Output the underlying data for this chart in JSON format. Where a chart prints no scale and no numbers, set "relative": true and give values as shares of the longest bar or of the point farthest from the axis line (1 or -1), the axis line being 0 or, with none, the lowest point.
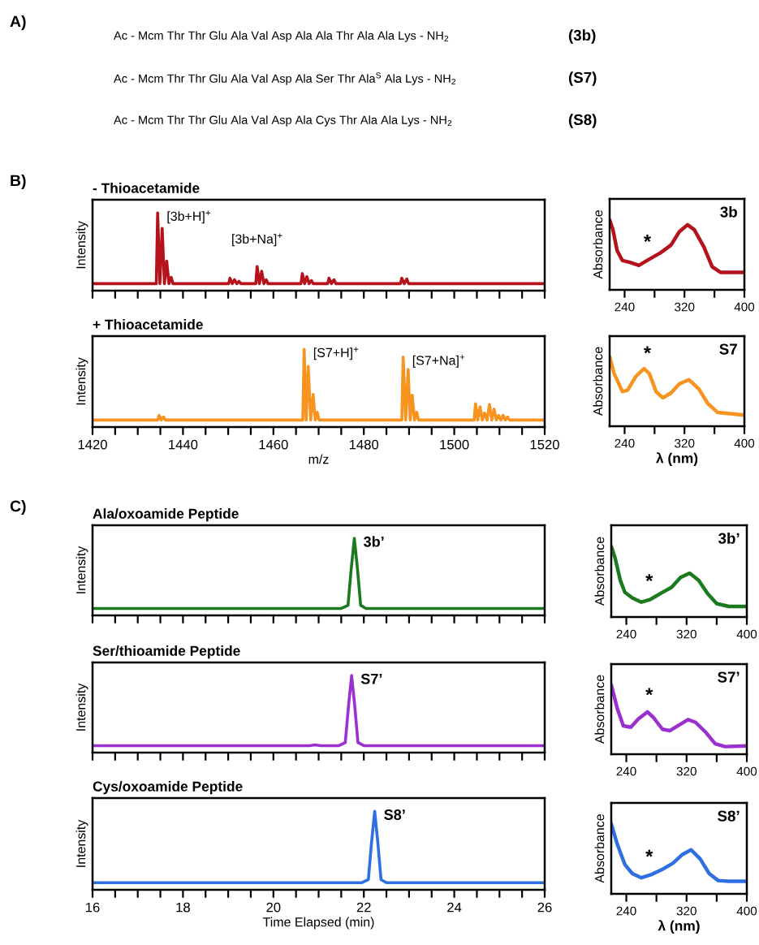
{
  "chart_data": [
    {
      "type": "other",
      "annotations": [
        "A)",
        "Ac - Mcm Thr Thr Glu Ala Val Asp Ala Ala Thr Ala Ala Lys - NH$_{2}$",
        "(3b)",
        "Ac - Mcm Thr Thr Glu Ala Val Asp Ala Ser Thr Ala$^{S}$ Ala Lys - NH$_{2}$",
        "(S7)",
        "Ac - Mcm Thr Thr Glu Ala Val Asp Ala Cys Thr Ala Ala Lys - NH$_{2}$",
        "(S8)"
      ]
    },
    {
      "type": "line",
      "title": "- Thioacetamide",
      "ylabel": "Intensity",
      "relative": true,
      "tick_labels": false,
      "xlim": [
        1420,
        1520
      ],
      "xticks": [
        1420,
        {
          "value": 1425,
          "label": null
        },
        {
          "value": 1430,
          "label": null
        },
        {
          "value": 1435,
          "label": null
        },
        {
          "value": 1440,
          "label": null
        },
        {
          "value": 1445,
          "label": null
        },
        {
          "value": 1450,
          "label": null
        },
        {
          "value": 1455,
          "label": null
        },
        {
          "value": 1460,
          "label": null
        },
        {
          "value": 1465,
          "label": null
        },
        {
          "value": 1470,
          "label": null
        },
        {
          "value": 1475,
          "label": null
        },
        {
          "value": 1480,
          "label": null
        },
        {
          "value": 1485,
          "label": null
        },
        {
          "value": 1490,
          "label": null
        },
        {
          "value": 1495,
          "label": null
        },
        {
          "value": 1500,
          "label": null
        },
        {
          "value": 1505,
          "label": null
        },
        {
          "value": 1510,
          "label": null
        },
        {
          "value": 1515,
          "label": null
        },
        {
          "value": 1520,
          "label": null
        }
      ],
      "annotations": [
        "B)",
        {
          "text": "[3b+H]$^{+}$",
          "x": 1434.4,
          "y": 1
        },
        {
          "text": "[3b+Na]$^{+}$",
          "x": 1456.4,
          "y": 0.31
        }
      ],
      "series": [
        {
          "color": "#b5121b",
          "x": [
            1420,
            1434.1,
            1434.4,
            1434.9,
            1435.4,
            1435.9,
            1436.4,
            1436.9,
            1437.4,
            1437.8,
            1450.1,
            1450.4,
            1450.9,
            1451.4,
            1451.9,
            1452.4,
            1452.8,
            1456.1,
            1456.4,
            1456.9,
            1457.4,
            1457.9,
            1458.4,
            1458.8,
            1466.1,
            1466.4,
            1466.9,
            1467.4,
            1467.9,
            1468.4,
            1468.8,
            1472.0,
            1472.3,
            1472.85,
            1473.4,
            1473.8,
            1488.1,
            1488.4,
            1488.95,
            1489.5,
            1489.9,
            1520
          ],
          "values": [
            0.09,
            0.09,
            1,
            0.09,
            0.8,
            0.09,
            0.38,
            0.09,
            0.17,
            0.09,
            0.09,
            0.16,
            0.09,
            0.14,
            0.09,
            0.12,
            0.09,
            0.09,
            0.31,
            0.09,
            0.25,
            0.09,
            0.14,
            0.09,
            0.09,
            0.22,
            0.09,
            0.18,
            0.09,
            0.13,
            0.09,
            0.09,
            0.16,
            0.09,
            0.14,
            0.09,
            0.09,
            0.16,
            0.09,
            0.15,
            0.09,
            0.09
          ]
        }
      ]
    },
    {
      "type": "line",
      "ylabel": "Absorbance",
      "relative": true,
      "xlim": [
        220,
        400
      ],
      "xticks": [
        240,
        {
          "value": 280,
          "label": null
        },
        320,
        {
          "value": 360,
          "label": null
        },
        400
      ],
      "annotations": [
        "3b",
        "*"
      ],
      "series": [
        {
          "color": "#b5121b",
          "x": [
            220,
            224.4,
            230,
            237,
            248,
            259,
            270,
            288,
            302,
            313,
            324,
            333,
            346,
            357,
            368,
            400
          ],
          "values": [
            1,
            0.86,
            0.56,
            0.42,
            0.39,
            0.35,
            0.42,
            0.53,
            0.64,
            0.83,
            0.93,
            0.86,
            0.61,
            0.33,
            0.25,
            0.25
          ]
        }
      ]
    },
    {
      "type": "line",
      "title": "+ Thioacetamide",
      "xlabel": "m/z",
      "ylabel": "Intensity",
      "relative": true,
      "xlim": [
        1420,
        1520
      ],
      "xticks": [
        1420,
        {
          "value": 1425,
          "label": null
        },
        {
          "value": 1430,
          "label": null
        },
        {
          "value": 1435,
          "label": null
        },
        1440,
        {
          "value": 1445,
          "label": null
        },
        {
          "value": 1450,
          "label": null
        },
        {
          "value": 1455,
          "label": null
        },
        1460,
        {
          "value": 1465,
          "label": null
        },
        {
          "value": 1470,
          "label": null
        },
        {
          "value": 1475,
          "label": null
        },
        1480,
        {
          "value": 1485,
          "label": null
        },
        {
          "value": 1490,
          "label": null
        },
        {
          "value": 1495,
          "label": null
        },
        1500,
        {
          "value": 1505,
          "label": null
        },
        {
          "value": 1510,
          "label": null
        },
        {
          "value": 1515,
          "label": null
        },
        1520
      ],
      "annotations": [
        {
          "text": "[S7+H]$^{+}$",
          "x": 1466.8,
          "y": 1
        },
        {
          "text": "[S7+Na]$^{+}$",
          "x": 1488.7,
          "y": 0.9
        }
      ],
      "series": [
        {
          "color": "#f7931e",
          "x": [
            1420,
            1434.4,
            1434.7,
            1435.2,
            1435.7,
            1436.1,
            1466.5,
            1466.8,
            1467.25,
            1467.7,
            1468.25,
            1468.8,
            1469.25,
            1469.7,
            1470.1,
            1488.4,
            1488.7,
            1489.25,
            1489.8,
            1490.25,
            1490.7,
            1491.2,
            1491.7,
            1492.1,
            1504.4,
            1504.7,
            1505.2,
            1505.7,
            1506.2,
            1506.7,
            1507.25,
            1507.8,
            1508.3,
            1508.8,
            1509.3,
            1509.8,
            1510.3,
            1510.8,
            1511.3,
            1511.8,
            1512.2,
            1520
          ],
          "values": [
            0.09,
            0.09,
            0.15,
            0.09,
            0.13,
            0.09,
            0.09,
            1,
            0.09,
            0.78,
            0.09,
            0.42,
            0.09,
            0.19,
            0.09,
            0.09,
            0.9,
            0.09,
            0.74,
            0.09,
            0.41,
            0.09,
            0.19,
            0.09,
            0.09,
            0.3,
            0.09,
            0.26,
            0.09,
            0.18,
            0.09,
            0.29,
            0.09,
            0.23,
            0.09,
            0.15,
            0.09,
            0.15,
            0.09,
            0.13,
            0.09,
            0.09
          ]
        }
      ]
    },
    {
      "type": "line",
      "xlabel": "λ (nm)",
      "ylabel": "Absorbance",
      "relative": true,
      "xlim": [
        220,
        400
      ],
      "xticks": [
        240,
        {
          "value": 280,
          "label": null
        },
        320,
        {
          "value": 360,
          "label": null
        },
        400
      ],
      "annotations": [
        "S7",
        "*"
      ],
      "series": [
        {
          "color": "#f7931e",
          "x": [
            220,
            226,
            237,
            244,
            255,
            266,
            273,
            282,
            291,
            302,
            313,
            326,
            339,
            351,
            364,
            400
          ],
          "values": [
            1,
            0.76,
            0.5,
            0.52,
            0.72,
            0.83,
            0.76,
            0.5,
            0.41,
            0.48,
            0.61,
            0.67,
            0.54,
            0.33,
            0.2,
            0.16
          ]
        }
      ]
    },
    {
      "type": "line",
      "title": "Ala/oxoamide Peptide",
      "ylabel": "Intensity",
      "relative": true,
      "tick_labels": false,
      "xlim": [
        16,
        26
      ],
      "xticks": [
        16,
        {
          "value": 16.5,
          "label": null
        },
        {
          "value": 17,
          "label": null
        },
        {
          "value": 17.5,
          "label": null
        },
        {
          "value": 18,
          "label": null
        },
        {
          "value": 18.5,
          "label": null
        },
        {
          "value": 19,
          "label": null
        },
        {
          "value": 19.5,
          "label": null
        },
        {
          "value": 20,
          "label": null
        },
        {
          "value": 20.5,
          "label": null
        },
        {
          "value": 21,
          "label": null
        },
        {
          "value": 21.5,
          "label": null
        },
        {
          "value": 22,
          "label": null
        },
        {
          "value": 22.5,
          "label": null
        },
        {
          "value": 23,
          "label": null
        },
        {
          "value": 23.5,
          "label": null
        },
        {
          "value": 24,
          "label": null
        },
        {
          "value": 24.5,
          "label": null
        },
        {
          "value": 25,
          "label": null
        },
        {
          "value": 25.5,
          "label": null
        },
        {
          "value": 26,
          "label": null
        }
      ],
      "annotations": [
        "C)",
        {
          "text": "3b’",
          "x": 21.79,
          "y": 1
        }
      ],
      "series": [
        {
          "color": "#1b7a1e",
          "x": [
            16,
            21.5,
            21.65,
            21.72,
            21.79,
            21.86,
            21.93,
            22.05,
            26
          ],
          "values": [
            0.09,
            0.09,
            0.13,
            0.6,
            1,
            0.6,
            0.13,
            0.09,
            0.09
          ]
        }
      ]
    },
    {
      "type": "line",
      "ylabel": "Absorbance",
      "relative": true,
      "xlim": [
        220,
        400
      ],
      "xticks": [
        240,
        {
          "value": 280,
          "label": null
        },
        320,
        {
          "value": 360,
          "label": null
        },
        400
      ],
      "annotations": [
        "3b’",
        "*"
      ],
      "series": [
        {
          "color": "#1b7a1e",
          "x": [
            220,
            225,
            232,
            238,
            248,
            260,
            272,
            288,
            300,
            312,
            324,
            336,
            348,
            360,
            376,
            400
          ],
          "values": [
            1,
            0.84,
            0.52,
            0.35,
            0.27,
            0.21,
            0.25,
            0.35,
            0.42,
            0.56,
            0.62,
            0.52,
            0.33,
            0.19,
            0.15,
            0.15
          ]
        }
      ]
    },
    {
      "type": "line",
      "title": "Ser/thioamide Peptide",
      "ylabel": "Intensity",
      "relative": true,
      "tick_labels": false,
      "xlim": [
        16,
        26
      ],
      "xticks": [
        16,
        {
          "value": 16.5,
          "label": null
        },
        {
          "value": 17,
          "label": null
        },
        {
          "value": 17.5,
          "label": null
        },
        {
          "value": 18,
          "label": null
        },
        {
          "value": 18.5,
          "label": null
        },
        {
          "value": 19,
          "label": null
        },
        {
          "value": 19.5,
          "label": null
        },
        {
          "value": 20,
          "label": null
        },
        {
          "value": 20.5,
          "label": null
        },
        {
          "value": 21,
          "label": null
        },
        {
          "value": 21.5,
          "label": null
        },
        {
          "value": 22,
          "label": null
        },
        {
          "value": 22.5,
          "label": null
        },
        {
          "value": 23,
          "label": null
        },
        {
          "value": 23.5,
          "label": null
        },
        {
          "value": 24,
          "label": null
        },
        {
          "value": 24.5,
          "label": null
        },
        {
          "value": 25,
          "label": null
        },
        {
          "value": 25.5,
          "label": null
        },
        {
          "value": 26,
          "label": null
        }
      ],
      "annotations": [
        {
          "text": "S7’",
          "x": 21.73,
          "y": 1
        }
      ],
      "series": [
        {
          "color": "#9b30d0",
          "x": [
            16,
            20.8,
            20.92,
            21.05,
            21.45,
            21.59,
            21.66,
            21.73,
            21.8,
            21.87,
            22.0,
            26
          ],
          "values": [
            0.09,
            0.09,
            0.1,
            0.09,
            0.09,
            0.13,
            0.6,
            1,
            0.6,
            0.13,
            0.09,
            0.09
          ]
        }
      ]
    },
    {
      "type": "line",
      "ylabel": "Absorbance",
      "relative": true,
      "xlim": [
        220,
        400
      ],
      "xticks": [
        240,
        {
          "value": 280,
          "label": null
        },
        320,
        {
          "value": 360,
          "label": null
        },
        400
      ],
      "annotations": [
        "S7’",
        "*"
      ],
      "series": [
        {
          "color": "#9b30d0",
          "x": [
            220,
            228,
            236,
            246,
            256,
            268,
            276,
            288,
            298,
            310,
            322,
            332,
            346,
            358,
            371,
            400
          ],
          "values": [
            1,
            0.66,
            0.41,
            0.39,
            0.51,
            0.61,
            0.53,
            0.36,
            0.34,
            0.42,
            0.5,
            0.46,
            0.31,
            0.15,
            0.11,
            0.12
          ]
        }
      ]
    },
    {
      "type": "line",
      "title": "Cys/oxoamide Peptide",
      "xlabel": "Time Elapsed (min)",
      "ylabel": "Intensity",
      "relative": true,
      "xlim": [
        16,
        26
      ],
      "xticks": [
        16,
        {
          "value": 16.5,
          "label": null
        },
        {
          "value": 17,
          "label": null
        },
        {
          "value": 17.5,
          "label": null
        },
        18,
        {
          "value": 18.5,
          "label": null
        },
        {
          "value": 19,
          "label": null
        },
        {
          "value": 19.5,
          "label": null
        },
        20,
        {
          "value": 20.5,
          "label": null
        },
        {
          "value": 21,
          "label": null
        },
        {
          "value": 21.5,
          "label": null
        },
        22,
        {
          "value": 22.5,
          "label": null
        },
        {
          "value": 23,
          "label": null
        },
        {
          "value": 23.5,
          "label": null
        },
        24,
        {
          "value": 24.5,
          "label": null
        },
        {
          "value": 25,
          "label": null
        },
        {
          "value": 25.5,
          "label": null
        },
        26
      ],
      "annotations": [
        {
          "text": "S8’",
          "x": 22.24,
          "y": 1
        }
      ],
      "series": [
        {
          "color": "#2f6fe4",
          "x": [
            16,
            21.95,
            22.1,
            22.17,
            22.24,
            22.31,
            22.38,
            22.5,
            26
          ],
          "values": [
            0.09,
            0.09,
            0.13,
            0.6,
            1,
            0.6,
            0.13,
            0.09,
            0.09
          ]
        }
      ]
    },
    {
      "type": "line",
      "xlabel": "λ (nm)",
      "ylabel": "Absorbance",
      "relative": true,
      "xlim": [
        220,
        400
      ],
      "xticks": [
        240,
        {
          "value": 280,
          "label": null
        },
        320,
        {
          "value": 360,
          "label": null
        },
        400
      ],
      "annotations": [
        "S8’",
        "*"
      ],
      "series": [
        {
          "color": "#2f6fe4",
          "x": [
            220,
            228,
            238,
            248,
            260,
            272,
            288,
            302,
            314,
            326,
            338,
            350,
            362,
            376,
            400
          ],
          "values": [
            1,
            0.71,
            0.42,
            0.29,
            0.23,
            0.27,
            0.35,
            0.44,
            0.56,
            0.63,
            0.5,
            0.29,
            0.19,
            0.18,
            0.18
          ]
        }
      ]
    }
  ]
}
